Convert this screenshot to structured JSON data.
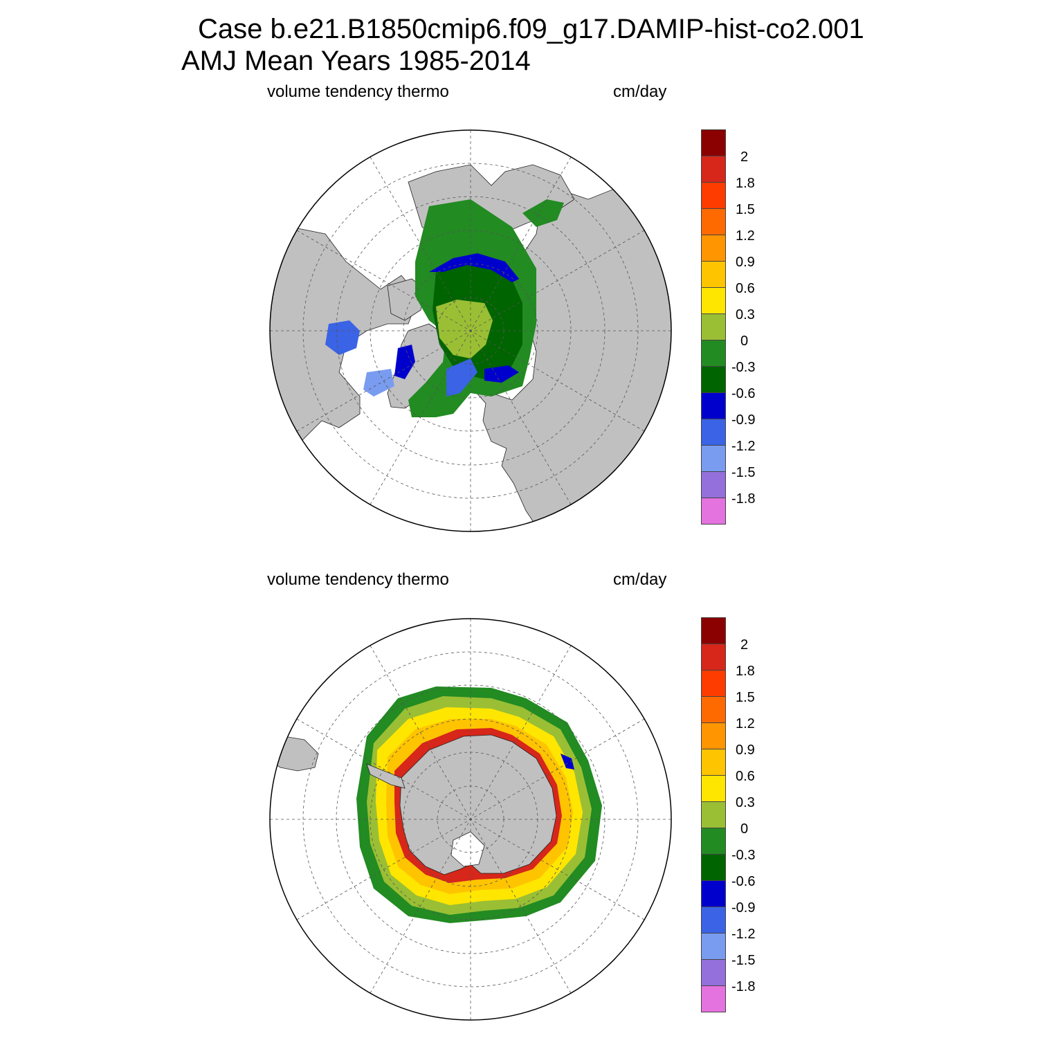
{
  "title": {
    "line1": "Case b.e21.B1850cmip6.f09_g17.DAMIP-hist-co2.001",
    "line2": "AMJ Mean   Years 1985-2014"
  },
  "panels": [
    {
      "id": "north",
      "variable": "volume tendency thermo",
      "units": "cm/day",
      "hemisphere": "north"
    },
    {
      "id": "south",
      "variable": "volume tendency thermo",
      "units": "cm/day",
      "hemisphere": "south"
    }
  ],
  "colorbar": {
    "labels": [
      "2",
      "1.8",
      "1.5",
      "1.2",
      "0.9",
      "0.6",
      "0.3",
      "0",
      "-0.3",
      "-0.6",
      "-0.9",
      "-1.2",
      "-1.5",
      "-1.8"
    ],
    "colors": [
      "#8b0000",
      "#d7261a",
      "#ff3c00",
      "#ff6a00",
      "#ff9500",
      "#ffc400",
      "#ffe600",
      "#9abf34",
      "#228b22",
      "#006400",
      "#0000cd",
      "#3a63e6",
      "#7a9cf0",
      "#9370db",
      "#e472df"
    ]
  },
  "map_colors": {
    "land": "#c0c0c0",
    "ocean": "#ffffff"
  }
}
